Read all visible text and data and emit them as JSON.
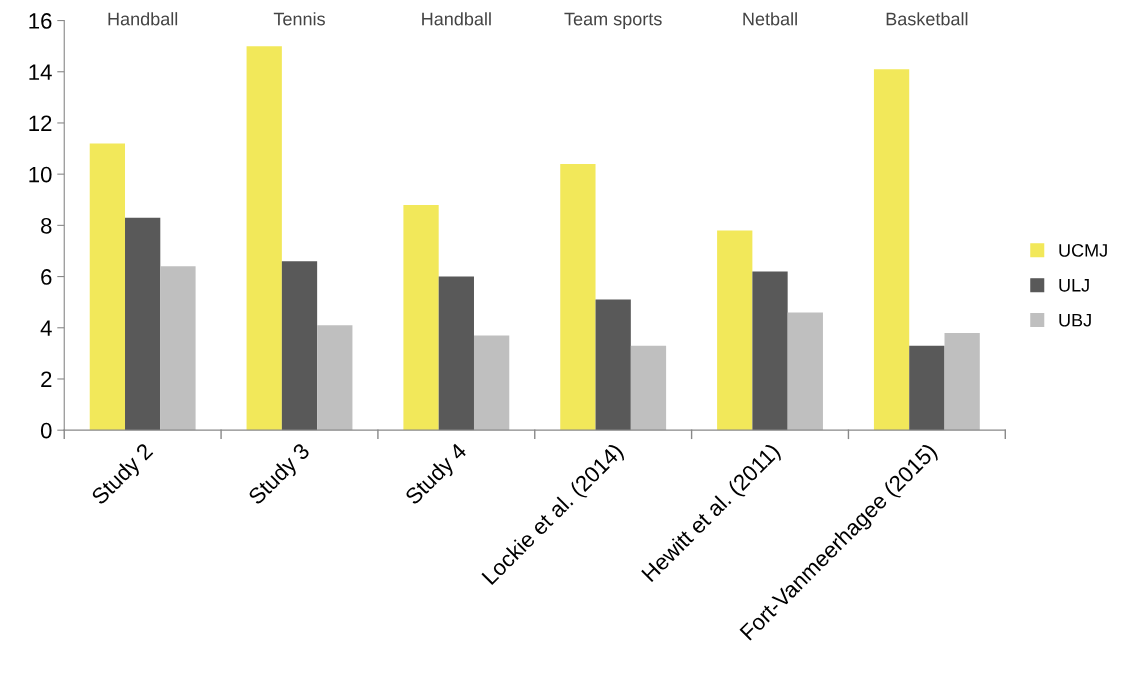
{
  "chart_data": {
    "type": "bar",
    "categories": [
      "Study 2",
      "Study 3",
      "Study 4",
      "Lockie et al. (2014)",
      "Hewitt et al. (2011)",
      "Fort-Vanmeerhagee (2015)"
    ],
    "series": [
      {
        "name": "UCMJ",
        "color": "#f2e85a",
        "values": [
          11.2,
          15.0,
          8.8,
          10.4,
          7.8,
          14.1
        ]
      },
      {
        "name": "ULJ",
        "color": "#595959",
        "values": [
          8.3,
          6.6,
          6.0,
          5.1,
          6.2,
          3.3
        ]
      },
      {
        "name": "UBJ",
        "color": "#bfbfbf",
        "values": [
          6.4,
          4.1,
          3.7,
          3.3,
          4.6,
          3.8
        ]
      }
    ],
    "ylim": [
      0,
      16
    ],
    "yticks": [
      0,
      2,
      4,
      6,
      8,
      10,
      12,
      14,
      16
    ],
    "annotations": [
      "Handball",
      "Tennis",
      "Handball",
      "Team sports",
      "Netball",
      "Basketball"
    ],
    "grid": false,
    "legend": "right"
  }
}
